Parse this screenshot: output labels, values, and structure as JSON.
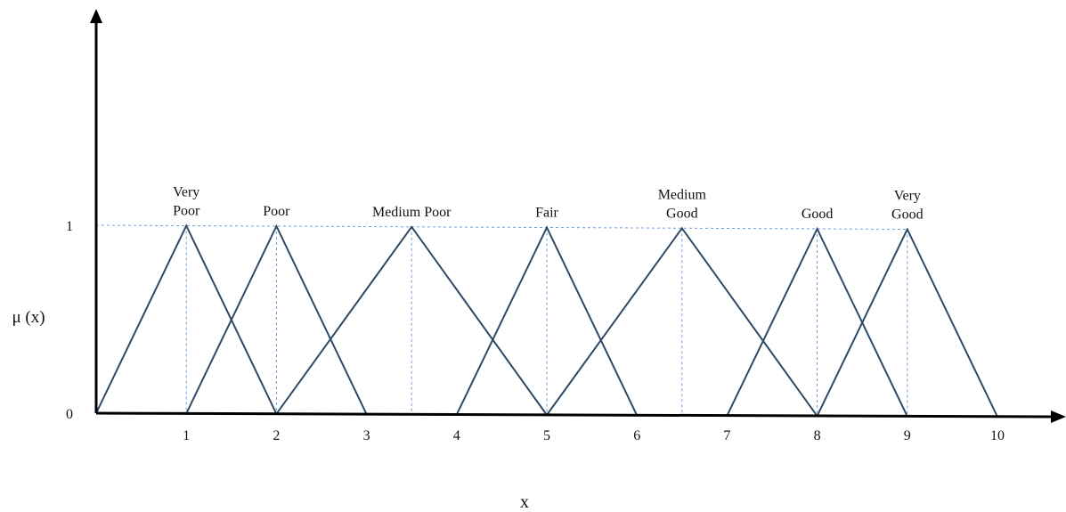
{
  "chart_data": {
    "type": "line",
    "title": "",
    "xlabel": "x",
    "ylabel": "μ (x)",
    "x_ticks": [
      "1",
      "2",
      "3",
      "4",
      "5",
      "6",
      "7",
      "8",
      "9",
      "10"
    ],
    "y_ticks": [
      "0",
      "1"
    ],
    "xlim": [
      0,
      10
    ],
    "ylim": [
      0,
      1
    ],
    "grid": false,
    "series": [
      {
        "name": "Very Poor",
        "label_lines": [
          "Very",
          "Poor"
        ],
        "points": [
          [
            0,
            0
          ],
          [
            1,
            1
          ],
          [
            2,
            0
          ]
        ]
      },
      {
        "name": "Poor",
        "label_lines": [
          "Poor"
        ],
        "points": [
          [
            1,
            0
          ],
          [
            2,
            1
          ],
          [
            3,
            0
          ]
        ]
      },
      {
        "name": "Medium Poor",
        "label_lines": [
          "Medium Poor"
        ],
        "points": [
          [
            2,
            0
          ],
          [
            3.5,
            1
          ],
          [
            5,
            0
          ]
        ]
      },
      {
        "name": "Fair",
        "label_lines": [
          "Fair"
        ],
        "points": [
          [
            4,
            0
          ],
          [
            5,
            1
          ],
          [
            6,
            0
          ]
        ]
      },
      {
        "name": "Medium Good",
        "label_lines": [
          "Medium",
          "Good"
        ],
        "points": [
          [
            5,
            0
          ],
          [
            6.5,
            1
          ],
          [
            8,
            0
          ]
        ]
      },
      {
        "name": "Good",
        "label_lines": [
          "Good"
        ],
        "points": [
          [
            7,
            0
          ],
          [
            8,
            1
          ],
          [
            9,
            0
          ]
        ]
      },
      {
        "name": "Very Good",
        "label_lines": [
          "Very",
          "Good"
        ],
        "points": [
          [
            8,
            0
          ],
          [
            9,
            1
          ],
          [
            10,
            0
          ]
        ]
      }
    ],
    "colors": {
      "lines": "#2f4a66",
      "guides": "#6f9fd8",
      "axis": "#000000"
    }
  }
}
